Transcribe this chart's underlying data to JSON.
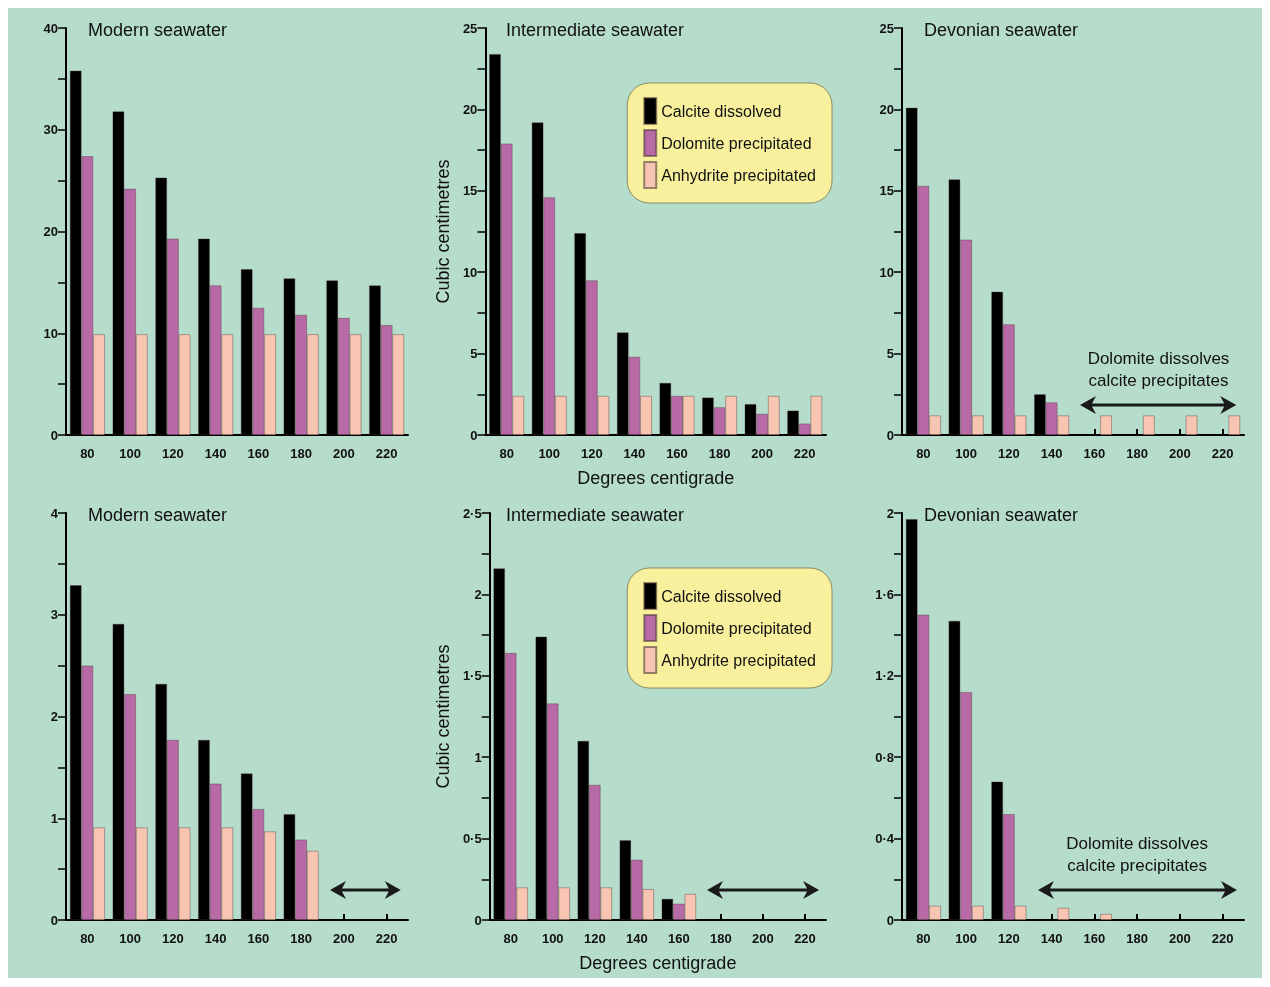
{
  "chart_data": [
    {
      "type": "bar",
      "title": "Modern seawater",
      "categories": [
        "80",
        "100",
        "120",
        "140",
        "160",
        "180",
        "200",
        "220"
      ],
      "series": [
        {
          "color": "#000000",
          "values": [
            35.8,
            31.8,
            25.3,
            19.3,
            16.3,
            15.4,
            15.2,
            14.7
          ]
        },
        {
          "color": "#b86aa6",
          "values": [
            27.4,
            24.2,
            19.3,
            14.7,
            12.5,
            11.8,
            11.5,
            10.8
          ]
        },
        {
          "color": "#f7c5b1",
          "values": [
            9.9,
            9.9,
            9.9,
            9.9,
            9.9,
            9.9,
            9.9,
            9.9
          ]
        }
      ],
      "ylim": [
        0,
        40
      ],
      "yticks": [
        0,
        {
          "value": 5,
          "label": null
        },
        10,
        {
          "value": 15,
          "label": null
        },
        20,
        {
          "value": 25,
          "label": null
        },
        30,
        {
          "value": 35,
          "label": null
        },
        40
      ],
      "grid": false,
      "legend": false
    },
    {
      "type": "bar",
      "title": "Intermediate seawater",
      "ylabel": "Cubic centimetres",
      "xlabel": "Degrees centigrade",
      "categories": [
        "80",
        "100",
        "120",
        "140",
        "160",
        "180",
        "200",
        "220"
      ],
      "series": [
        {
          "name": "Calcite dissolved",
          "color": "#000000",
          "values": [
            23.4,
            19.2,
            12.4,
            6.3,
            3.2,
            2.3,
            1.9,
            1.5
          ]
        },
        {
          "name": "Dolomite precipitated",
          "color": "#b86aa6",
          "values": [
            17.9,
            14.6,
            9.5,
            4.8,
            2.4,
            1.7,
            1.3,
            0.7
          ]
        },
        {
          "name": "Anhydrite precipitated",
          "color": "#f7c5b1",
          "values": [
            2.4,
            2.4,
            2.4,
            2.4,
            2.4,
            2.4,
            2.4,
            2.4
          ]
        }
      ],
      "ylim": [
        0,
        25
      ],
      "yticks": [
        0,
        {
          "value": 2.5,
          "label": null
        },
        5,
        {
          "value": 7.5,
          "label": null
        },
        10,
        {
          "value": 12.5,
          "label": null
        },
        15,
        {
          "value": 17.5,
          "label": null
        },
        20,
        {
          "value": 22.5,
          "label": null
        },
        25
      ],
      "grid": false,
      "legend": "top right"
    },
    {
      "type": "bar",
      "title": "Devonian seawater",
      "categories": [
        "80",
        "100",
        "120",
        "140",
        "160",
        "180",
        "200",
        "220"
      ],
      "series": [
        {
          "color": "#000000",
          "values": [
            20.1,
            15.7,
            8.8,
            2.5,
            null,
            null,
            null,
            null
          ]
        },
        {
          "color": "#b86aa6",
          "values": [
            15.3,
            12.0,
            6.8,
            2.0,
            null,
            null,
            null,
            null
          ]
        },
        {
          "color": "#f7c5b1",
          "values": [
            1.2,
            1.2,
            1.2,
            1.2,
            1.2,
            1.2,
            1.2,
            1.2
          ]
        }
      ],
      "ylim": [
        0,
        25
      ],
      "yticks": [
        0,
        {
          "value": 2.5,
          "label": null
        },
        5,
        {
          "value": 7.5,
          "label": null
        },
        10,
        {
          "value": 12.5,
          "label": null
        },
        15,
        {
          "value": 17.5,
          "label": null
        },
        20,
        {
          "value": 22.5,
          "label": null
        },
        25
      ],
      "grid": false,
      "legend": false,
      "annotations": [
        "Dolomite dissolves\ncalcite precipitates"
      ]
    },
    {
      "type": "bar",
      "title": "Modern seawater",
      "categories": [
        "80",
        "100",
        "120",
        "140",
        "160",
        "180",
        "200",
        "220"
      ],
      "series": [
        {
          "color": "#000000",
          "values": [
            3.29,
            2.91,
            2.32,
            1.77,
            1.44,
            1.04,
            null,
            null
          ]
        },
        {
          "color": "#b86aa6",
          "values": [
            2.5,
            2.22,
            1.77,
            1.34,
            1.09,
            0.79,
            null,
            null
          ]
        },
        {
          "color": "#f7c5b1",
          "values": [
            0.91,
            0.91,
            0.91,
            0.91,
            0.87,
            0.68,
            null,
            null
          ]
        }
      ],
      "ylim": [
        0,
        4
      ],
      "yticks": [
        0,
        {
          "value": 0.5,
          "label": null
        },
        1,
        {
          "value": 1.5,
          "label": null
        },
        2,
        {
          "value": 2.5,
          "label": null
        },
        3,
        {
          "value": 3.5,
          "label": null
        },
        4
      ],
      "grid": false,
      "legend": false
    },
    {
      "type": "bar",
      "title": "Intermediate seawater",
      "ylabel": "Cubic centimetres",
      "xlabel": "Degrees centigrade",
      "categories": [
        "80",
        "100",
        "120",
        "140",
        "160",
        "180",
        "200",
        "220"
      ],
      "series": [
        {
          "name": "Calcite dissolved",
          "color": "#000000",
          "values": [
            2.16,
            1.74,
            1.1,
            0.49,
            0.13,
            null,
            null,
            null
          ]
        },
        {
          "name": "Dolomite precipitated",
          "color": "#b86aa6",
          "values": [
            1.64,
            1.33,
            0.83,
            0.37,
            0.1,
            null,
            null,
            null
          ]
        },
        {
          "name": "Anhydrite precipitated",
          "color": "#f7c5b1",
          "values": [
            0.2,
            0.2,
            0.2,
            0.19,
            0.16,
            null,
            null,
            null
          ]
        }
      ],
      "ylim": [
        0,
        2.5
      ],
      "yticks": [
        0,
        {
          "value": 0.25,
          "label": null
        },
        {
          "value": 0.5,
          "label": "0·5"
        },
        {
          "value": 0.75,
          "label": null
        },
        1,
        {
          "value": 1.25,
          "label": null
        },
        {
          "value": 1.5,
          "label": "1·5"
        },
        {
          "value": 1.75,
          "label": null
        },
        2,
        {
          "value": 2.25,
          "label": null
        },
        {
          "value": 2.5,
          "label": "2·5"
        }
      ],
      "grid": false,
      "legend": "top right"
    },
    {
      "type": "bar",
      "title": "Devonian seawater",
      "categories": [
        "80",
        "100",
        "120",
        "140",
        "160",
        "180",
        "200",
        "220"
      ],
      "series": [
        {
          "color": "#000000",
          "values": [
            1.97,
            1.47,
            0.68,
            null,
            null,
            null,
            null,
            null
          ]
        },
        {
          "color": "#b86aa6",
          "values": [
            1.5,
            1.12,
            0.52,
            null,
            null,
            null,
            null,
            null
          ]
        },
        {
          "color": "#f7c5b1",
          "values": [
            0.07,
            0.07,
            0.07,
            0.06,
            0.03,
            null,
            null,
            null
          ]
        }
      ],
      "ylim": [
        0,
        2
      ],
      "yticks": [
        0,
        {
          "value": 0.2,
          "label": null
        },
        {
          "value": 0.4,
          "label": "0·4"
        },
        {
          "value": 0.6,
          "label": null
        },
        {
          "value": 0.8,
          "label": "0·8"
        },
        {
          "value": 1,
          "label": null
        },
        {
          "value": 1.2,
          "label": "1·2"
        },
        {
          "value": 1.4,
          "label": null
        },
        {
          "value": 1.6,
          "label": "1·6"
        },
        {
          "value": 1.8,
          "label": null
        },
        2
      ],
      "grid": false,
      "legend": false,
      "annotations": [
        "Dolomite dissolves\ncalcite precipitates"
      ]
    }
  ]
}
